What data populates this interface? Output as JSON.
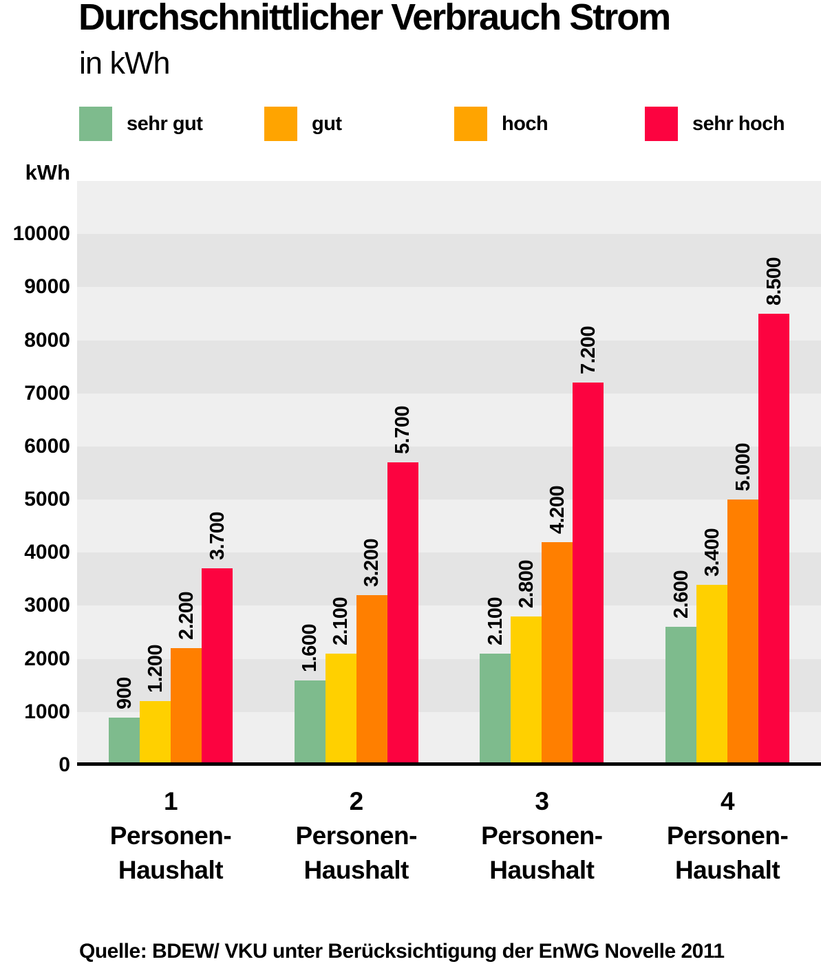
{
  "title": "Durchschnittlicher Verbrauch Strom",
  "subtitle": "in kWh",
  "source": "Quelle: BDEW/ VKU unter Berücksichtigung der EnWG Novelle 2011",
  "legend": {
    "items": [
      {
        "label": "sehr gut",
        "swatch_color": "#7EBB8D"
      },
      {
        "label": "gut",
        "swatch_color": "#FFA400"
      },
      {
        "label": "hoch",
        "swatch_color": "#FFA400"
      },
      {
        "label": "sehr hoch",
        "swatch_color": "#FC0340"
      }
    ]
  },
  "chart_data": {
    "type": "bar",
    "title": "Durchschnittlicher Verbrauch Strom in kWh",
    "ylabel": "kWh",
    "ylim": [
      0,
      11000
    ],
    "grid": "alternating-horizontal-bands",
    "legend_position": "top",
    "band_colors": {
      "light": "#EFEFEF",
      "dark": "#E4E4E4"
    },
    "axis_line_color": "#000000",
    "y_ticks": [
      {
        "value": 0,
        "label": "0"
      },
      {
        "value": 1000,
        "label": "1000"
      },
      {
        "value": 2000,
        "label": "2000"
      },
      {
        "value": 3000,
        "label": "3000"
      },
      {
        "value": 4000,
        "label": "4000"
      },
      {
        "value": 5000,
        "label": "5000"
      },
      {
        "value": 6000,
        "label": "6000"
      },
      {
        "value": 7000,
        "label": "7000"
      },
      {
        "value": 8000,
        "label": "8000"
      },
      {
        "value": 9000,
        "label": "9000"
      },
      {
        "value": 10000,
        "label": "10000"
      }
    ],
    "categories": [
      {
        "lines": [
          "1",
          "Personen-",
          "Haushalt"
        ]
      },
      {
        "lines": [
          "2",
          "Personen-",
          "Haushalt"
        ]
      },
      {
        "lines": [
          "3",
          "Personen-",
          "Haushalt"
        ]
      },
      {
        "lines": [
          "4",
          "Personen-",
          "Haushalt"
        ]
      }
    ],
    "series": [
      {
        "name": "sehr gut",
        "color": "#7EBB8D",
        "values": [
          900,
          1600,
          2100,
          2600
        ],
        "labels": [
          "900",
          "1.600",
          "2.100",
          "2.600"
        ]
      },
      {
        "name": "gut",
        "color": "#FFD000",
        "values": [
          1200,
          2100,
          2800,
          3400
        ],
        "labels": [
          "1.200",
          "2.100",
          "2.800",
          "3.400"
        ]
      },
      {
        "name": "hoch",
        "color": "#FF7F00",
        "values": [
          2200,
          3200,
          4200,
          5000
        ],
        "labels": [
          "2.200",
          "3.200",
          "4.200",
          "5.000"
        ]
      },
      {
        "name": "sehr hoch",
        "color": "#FC0340",
        "values": [
          3700,
          5700,
          7200,
          8500
        ],
        "labels": [
          "3.700",
          "5.700",
          "7.200",
          "8.500"
        ]
      }
    ]
  }
}
